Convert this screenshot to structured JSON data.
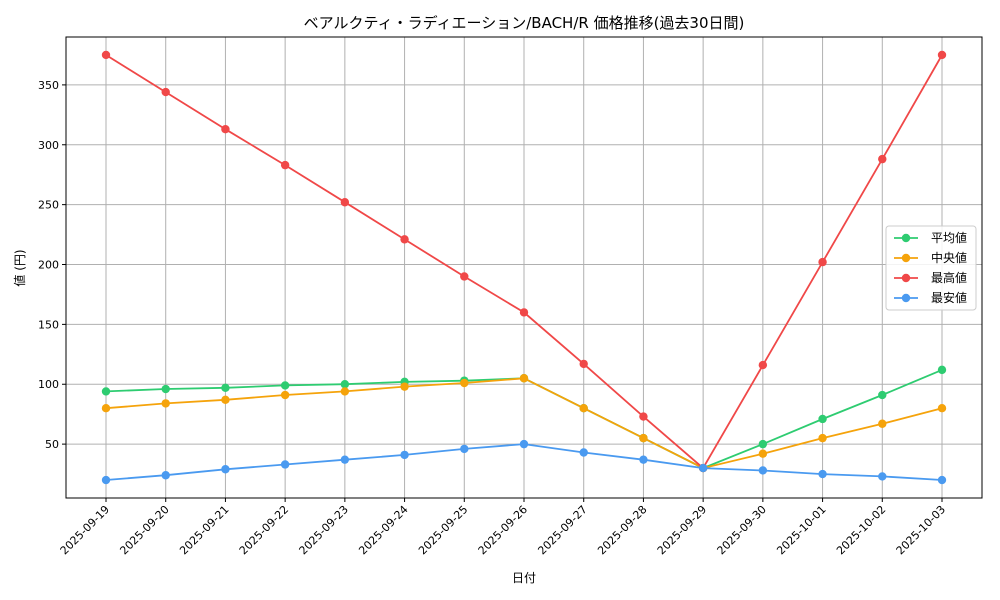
{
  "chart_data": {
    "type": "line",
    "title": "ベアルクティ・ラディエーション/BACH/R 価格推移(過去30日間)",
    "xlabel": "日付",
    "ylabel": "値 (円)",
    "ylim": [
      5,
      390
    ],
    "yticks": [
      50,
      100,
      150,
      200,
      250,
      300,
      350
    ],
    "grid": true,
    "legend_position": "center-right",
    "categories": [
      "2025-09-19",
      "2025-09-20",
      "2025-09-21",
      "2025-09-22",
      "2025-09-23",
      "2025-09-24",
      "2025-09-25",
      "2025-09-26",
      "2025-09-27",
      "2025-09-28",
      "2025-09-29",
      "2025-09-30",
      "2025-10-01",
      "2025-10-02",
      "2025-10-03"
    ],
    "series": [
      {
        "name": "平均値",
        "color": "#2ecc71",
        "values": [
          94,
          96,
          97,
          99,
          100,
          102,
          103,
          105,
          80,
          55,
          30,
          50,
          71,
          91,
          112
        ]
      },
      {
        "name": "中央値",
        "color": "#f5a30b",
        "values": [
          80,
          84,
          87,
          91,
          94,
          98,
          101,
          105,
          80,
          55,
          30,
          42,
          55,
          67,
          80
        ]
      },
      {
        "name": "最高値",
        "color": "#f04848",
        "values": [
          375,
          344,
          313,
          283,
          252,
          221,
          190,
          160,
          117,
          73,
          30,
          116,
          202,
          288,
          375
        ]
      },
      {
        "name": "最安値",
        "color": "#4a9af0",
        "values": [
          20,
          24,
          29,
          33,
          37,
          41,
          46,
          50,
          43,
          37,
          30,
          28,
          25,
          23,
          20
        ]
      }
    ]
  }
}
